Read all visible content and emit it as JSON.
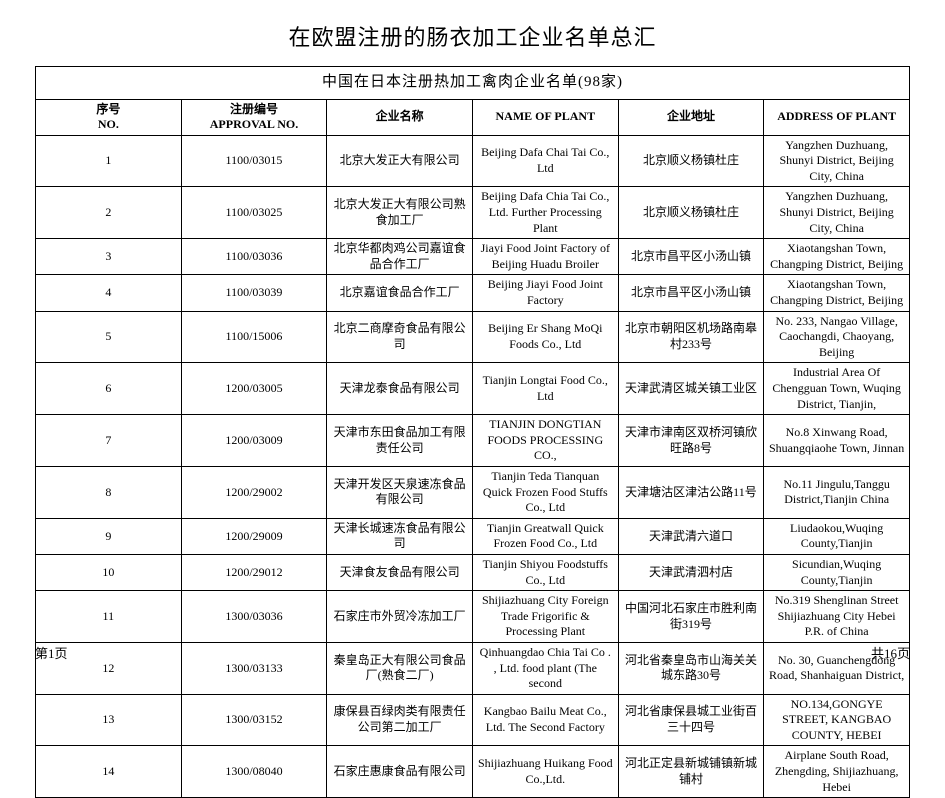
{
  "page_title": "在欧盟注册的肠衣加工企业名单总汇",
  "table_caption": "中国在日本注册热加工禽肉企业名单(98家)",
  "columns": {
    "no": {
      "cn": "序号",
      "en": "NO."
    },
    "approval": {
      "cn": "注册编号",
      "en": "APPROVAL NO."
    },
    "name_cn": {
      "cn": "企业名称",
      "en": ""
    },
    "name_en": {
      "cn": "",
      "en": "NAME OF PLANT"
    },
    "addr_cn": {
      "cn": "企业地址",
      "en": ""
    },
    "addr_en": {
      "cn": "",
      "en": "ADDRESS OF PLANT"
    }
  },
  "rows": [
    {
      "no": "1",
      "approval": "1100/03015",
      "name_cn": "北京大发正大有限公司",
      "name_en": "Beijing Dafa Chai Tai Co., Ltd",
      "addr_cn": "北京顺义杨镇杜庄",
      "addr_en": "Yangzhen Duzhuang, Shunyi District, Beijing City, China"
    },
    {
      "no": "2",
      "approval": "1100/03025",
      "name_cn": "北京大发正大有限公司熟食加工厂",
      "name_en": "Beijing Dafa Chia Tai Co., Ltd. Further Processing Plant",
      "addr_cn": "北京顺义杨镇杜庄",
      "addr_en": "Yangzhen Duzhuang, Shunyi District, Beijing City, China"
    },
    {
      "no": "3",
      "approval": "1100/03036",
      "name_cn": "北京华都肉鸡公司嘉谊食品合作工厂",
      "name_en": "Jiayi Food Joint Factory of Beijing Huadu Broiler",
      "addr_cn": "北京市昌平区小汤山镇",
      "addr_en": "Xiaotangshan Town, Changping District, Beijing"
    },
    {
      "no": "4",
      "approval": "1100/03039",
      "name_cn": "北京嘉谊食品合作工厂",
      "name_en": "Beijing Jiayi Food Joint Factory",
      "addr_cn": "北京市昌平区小汤山镇",
      "addr_en": "Xiaotangshan Town, Changping District, Beijing"
    },
    {
      "no": "5",
      "approval": "1100/15006",
      "name_cn": "北京二商摩奇食品有限公司",
      "name_en": "Beijing Er Shang MoQi Foods Co., Ltd",
      "addr_cn": "北京市朝阳区机场路南皋村233号",
      "addr_en": "No. 233, Nangao Village, Caochangdi, Chaoyang, Beijing"
    },
    {
      "no": "6",
      "approval": "1200/03005",
      "name_cn": "天津龙泰食品有限公司",
      "name_en": "Tianjin Longtai Food Co., Ltd",
      "addr_cn": "天津武清区城关镇工业区",
      "addr_en": "Industrial Area Of Chengguan Town, Wuqing District, Tianjin,"
    },
    {
      "no": "7",
      "approval": "1200/03009",
      "name_cn": "天津市东田食品加工有限责任公司",
      "name_en": "TIANJIN DONGTIAN FOODS PROCESSING CO.,",
      "addr_cn": "天津市津南区双桥河镇欣旺路8号",
      "addr_en": "No.8 Xinwang Road, Shuangqiaohe Town, Jinnan"
    },
    {
      "no": "8",
      "approval": "1200/29002",
      "name_cn": "天津开发区天泉速冻食品有限公司",
      "name_en": "Tianjin Teda Tianquan Quick Frozen Food Stuffs Co., Ltd",
      "addr_cn": "天津塘沽区津沽公路11号",
      "addr_en": "No.11 Jingulu,Tanggu District,Tianjin China"
    },
    {
      "no": "9",
      "approval": "1200/29009",
      "name_cn": "天津长城速冻食品有限公司",
      "name_en": "Tianjin Greatwall Quick Frozen Food Co., Ltd",
      "addr_cn": "天津武清六道口",
      "addr_en": "Liudaokou,Wuqing County,Tianjin"
    },
    {
      "no": "10",
      "approval": "1200/29012",
      "name_cn": "天津食友食品有限公司",
      "name_en": "Tianjin Shiyou Foodstuffs Co., Ltd",
      "addr_cn": "天津武清泗村店",
      "addr_en": "Sicundian,Wuqing County,Tianjin"
    },
    {
      "no": "11",
      "approval": "1300/03036",
      "name_cn": "石家庄市外贸冷冻加工厂",
      "name_en": "Shijiazhuang City Foreign Trade Frigorific & Processing Plant",
      "addr_cn": "中国河北石家庄市胜利南街319号",
      "addr_en": "No.319 Shenglinan  Street  Shijiazhuang City Hebei  P.R. of China"
    },
    {
      "no": "12",
      "approval": "1300/03133",
      "name_cn": "秦皇岛正大有限公司食品厂(熟食二厂)",
      "name_en": "Qinhuangdao Chia Tai Co . , Ltd. food  plant (The second",
      "addr_cn": "河北省秦皇岛市山海关关城东路30号",
      "addr_en": "No. 30, Guanchengdong Road, Shanhaiguan District,"
    },
    {
      "no": "13",
      "approval": "1300/03152",
      "name_cn": "康保县百绿肉类有限责任公司第二加工厂",
      "name_en": "Kangbao Bailu Meat Co., Ltd. The Second  Factory",
      "addr_cn": "河北省康保县城工业街百三十四号",
      "addr_en": "NO.134,GONGYE STREET, KANGBAO COUNTY, HEBEI"
    },
    {
      "no": "14",
      "approval": "1300/08040",
      "name_cn": "石家庄惠康食品有限公司",
      "name_en": "Shijiazhuang  Huikang Food Co.,Ltd.",
      "addr_cn": "河北正定县新城铺镇新城铺村",
      "addr_en": "Airplane South Road,  Zhengding, Shijiazhuang,  Hebei"
    }
  ],
  "footer": {
    "left": "第1页",
    "right": "共16页"
  }
}
